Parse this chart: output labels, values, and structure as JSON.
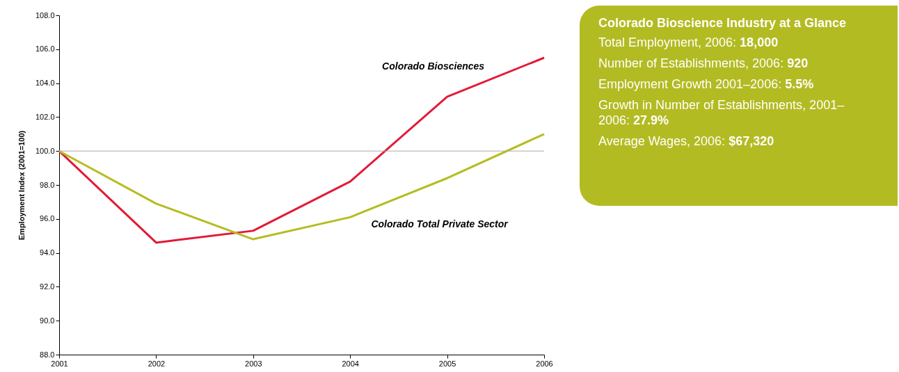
{
  "chart_data": [
    {
      "type": "line",
      "ylabel": "Employment Index (2001=100)",
      "x": [
        2001,
        2002,
        2003,
        2004,
        2005,
        2006
      ],
      "series": [
        {
          "name": "Colorado Biosciences",
          "color": "#e31937",
          "values": [
            100,
            94.6,
            95.3,
            98.2,
            103.2,
            105.5
          ]
        },
        {
          "name": "Colorado Total Private Sector",
          "color": "#b5bd21",
          "values": [
            100,
            96.9,
            94.8,
            96.1,
            98.4,
            101.0
          ]
        }
      ],
      "xlim": [
        2001,
        2006
      ],
      "xticks": [
        2001,
        2002,
        2003,
        2004,
        2005,
        2006
      ],
      "ylim": [
        88,
        108
      ],
      "yticks": [
        {
          "value": 88,
          "label": "88.0"
        },
        {
          "value": 90,
          "label": "90.0"
        },
        {
          "value": 92,
          "label": "92.0"
        },
        {
          "value": 94,
          "label": "94.0"
        },
        {
          "value": 96,
          "label": "96.0"
        },
        {
          "value": 98,
          "label": "98.0"
        },
        {
          "value": 100,
          "label": "100.0"
        },
        {
          "value": 102,
          "label": "102.0"
        },
        {
          "value": 104,
          "label": "104.0"
        },
        {
          "value": 106,
          "label": "106.0"
        },
        {
          "value": 108,
          "label": "108.0"
        }
      ],
      "ref_lines": [
        {
          "axis": "y",
          "value": 100,
          "color": "#aaaaaa"
        }
      ],
      "grid": false,
      "legend": false
    },
    {
      "type": "other",
      "title": "Colorado Bioscience Industry at a Glance",
      "annotations": [
        "Total Employment, 2006: 18,000",
        "Number of Establishments, 2006: 920",
        "Employment Growth 2001–2006: 5.5%",
        "Growth in Number of Establishments, 2001–2006: 27.9%",
        "Average Wages, 2006: $67,320"
      ]
    }
  ]
}
